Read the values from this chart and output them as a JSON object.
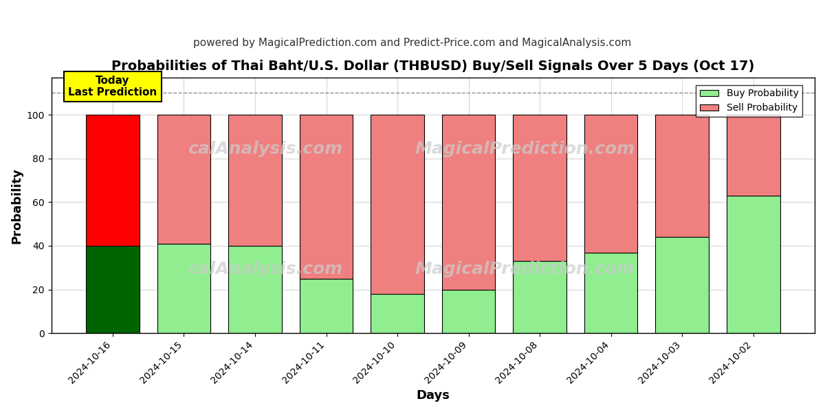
{
  "title": "Probabilities of Thai Baht/U.S. Dollar (THBUSD) Buy/Sell Signals Over 5 Days (Oct 17)",
  "subtitle": "powered by MagicalPrediction.com and Predict-Price.com and MagicalAnalysis.com",
  "xlabel": "Days",
  "ylabel": "Probability",
  "categories": [
    "2024-10-16",
    "2024-10-15",
    "2024-10-14",
    "2024-10-11",
    "2024-10-10",
    "2024-10-09",
    "2024-10-08",
    "2024-10-04",
    "2024-10-03",
    "2024-10-02"
  ],
  "buy_values": [
    40,
    41,
    40,
    25,
    18,
    20,
    33,
    37,
    44,
    63
  ],
  "sell_values": [
    60,
    59,
    60,
    75,
    82,
    80,
    67,
    63,
    56,
    37
  ],
  "buy_color_today": "#006400",
  "sell_color_today": "#FF0000",
  "buy_color_normal": "#90EE90",
  "sell_color_normal": "#F08080",
  "bar_edge_color": "#000000",
  "annotation_text": "Today\nLast Prediction",
  "annotation_bg": "#FFFF00",
  "dashed_line_y": 110,
  "ylim": [
    0,
    117
  ],
  "yticks": [
    0,
    20,
    40,
    60,
    80,
    100
  ],
  "watermark_top_left": "calAnalysis.com",
  "watermark_top_right": "MagicalPrediction.com",
  "watermark_bot_left": "calAnalysis.com",
  "watermark_bot_right": "MagicalPrediction.com",
  "legend_buy_label": "Buy Probability",
  "legend_sell_label": "Sell Probability",
  "title_fontsize": 14,
  "subtitle_fontsize": 11,
  "axis_label_fontsize": 13,
  "bar_width": 0.75
}
